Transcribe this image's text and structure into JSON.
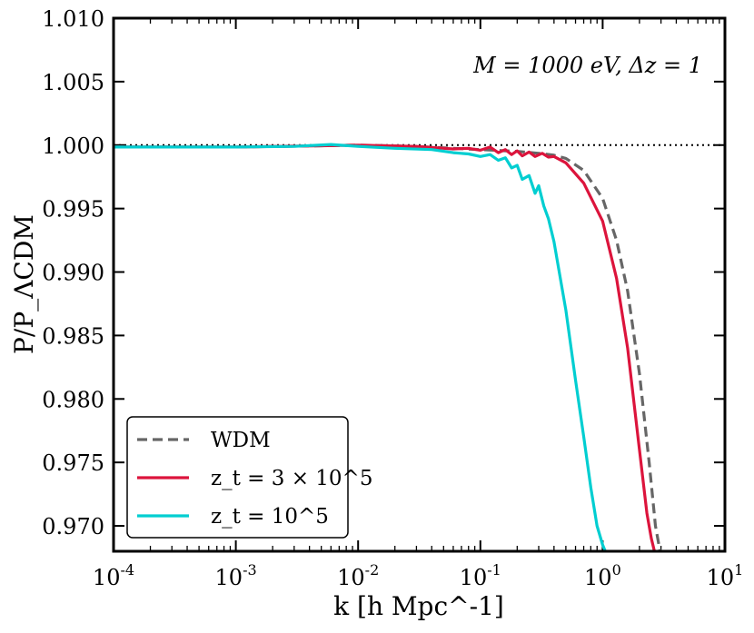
{
  "chart_data": {
    "type": "line",
    "title": "",
    "xlabel": "k [h Mpc^-1]",
    "ylabel": "P/P_ΛCDM",
    "xscale": "log",
    "xlim": [
      0.0001,
      10
    ],
    "ylim": [
      0.968,
      1.01
    ],
    "x_ticks": [
      {
        "value": 0.0001,
        "base": "10",
        "exp": "-4"
      },
      {
        "value": 0.001,
        "base": "10",
        "exp": "-3"
      },
      {
        "value": 0.01,
        "base": "10",
        "exp": "-2"
      },
      {
        "value": 0.1,
        "base": "10",
        "exp": "-1"
      },
      {
        "value": 1,
        "base": "10",
        "exp": "0"
      },
      {
        "value": 10,
        "base": "10",
        "exp": "1"
      }
    ],
    "y_ticks": [
      {
        "value": 0.97,
        "label": "0.970"
      },
      {
        "value": 0.975,
        "label": "0.975"
      },
      {
        "value": 0.98,
        "label": "0.980"
      },
      {
        "value": 0.985,
        "label": "0.985"
      },
      {
        "value": 0.99,
        "label": "0.990"
      },
      {
        "value": 0.995,
        "label": "0.995"
      },
      {
        "value": 1.0,
        "label": "1.000"
      },
      {
        "value": 1.005,
        "label": "1.005"
      },
      {
        "value": 1.01,
        "label": "1.010"
      }
    ],
    "annotation": "M = 1000 eV, Δz = 1",
    "reference_line": {
      "y": 1.0,
      "style": "dotted",
      "color": "#000000"
    },
    "legend_position": "lower-left",
    "series": [
      {
        "name": "WDM",
        "color": "#666666",
        "dash": "dashed",
        "x": [
          0.0001,
          0.001,
          0.005,
          0.01,
          0.03,
          0.06,
          0.1,
          0.2,
          0.3,
          0.4,
          0.5,
          0.7,
          1.0,
          1.3,
          1.6,
          2.0,
          2.4,
          2.7,
          2.95
        ],
        "y": [
          0.99985,
          0.99985,
          0.99995,
          1.0,
          0.9999,
          0.99975,
          0.99965,
          0.9995,
          0.99935,
          0.9992,
          0.99895,
          0.998,
          0.9958,
          0.9925,
          0.9885,
          0.982,
          0.975,
          0.97,
          0.968
        ]
      },
      {
        "name": "z_t = 3 × 10^5",
        "color": "#dc143c",
        "dash": "solid",
        "x": [
          0.0001,
          0.001,
          0.005,
          0.01,
          0.03,
          0.06,
          0.08,
          0.1,
          0.12,
          0.14,
          0.16,
          0.18,
          0.2,
          0.22,
          0.25,
          0.28,
          0.32,
          0.36,
          0.4,
          0.5,
          0.7,
          1.0,
          1.3,
          1.6,
          2.0,
          2.3,
          2.5,
          2.65
        ],
        "y": [
          0.99985,
          0.99985,
          0.99995,
          1.0,
          0.9999,
          0.9997,
          0.99975,
          0.9996,
          0.99985,
          0.9994,
          0.99965,
          0.99925,
          0.99955,
          0.99915,
          0.99945,
          0.9991,
          0.99935,
          0.99905,
          0.9991,
          0.9986,
          0.997,
          0.994,
          0.9895,
          0.984,
          0.976,
          0.971,
          0.969,
          0.968
        ]
      },
      {
        "name": "z_t = 10^5",
        "color": "#00ced1",
        "dash": "solid",
        "x": [
          0.0001,
          0.001,
          0.003,
          0.006,
          0.01,
          0.02,
          0.04,
          0.06,
          0.08,
          0.1,
          0.12,
          0.14,
          0.16,
          0.18,
          0.2,
          0.22,
          0.25,
          0.28,
          0.3,
          0.33,
          0.36,
          0.4,
          0.5,
          0.6,
          0.7,
          0.8,
          0.9,
          1.0,
          1.05
        ],
        "y": [
          0.99985,
          0.99985,
          0.9999,
          1.00005,
          0.9999,
          0.99975,
          0.99965,
          0.9994,
          0.9993,
          0.9991,
          0.99925,
          0.9988,
          0.999,
          0.9982,
          0.9984,
          0.9973,
          0.9976,
          0.9962,
          0.9968,
          0.9952,
          0.9942,
          0.9924,
          0.987,
          0.9815,
          0.977,
          0.973,
          0.97,
          0.9685,
          0.968
        ]
      }
    ]
  }
}
